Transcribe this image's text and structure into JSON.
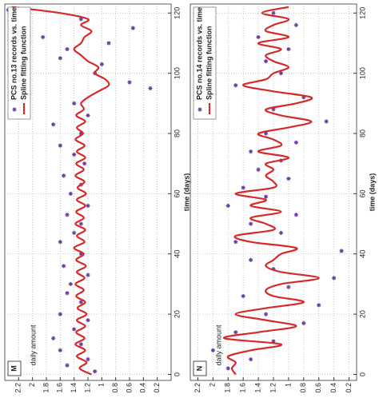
{
  "chart_data": [
    {
      "type": "line",
      "title": "M",
      "xlabel": "time (days)",
      "ylabel": "daily amount",
      "xlim": [
        -2,
        123
      ],
      "ylim": [
        0,
        2.4
      ],
      "xticks": [
        0,
        20,
        40,
        60,
        80,
        100,
        120
      ],
      "yticks": [
        0.2,
        0.4,
        0.6,
        0.8,
        1,
        1.2,
        1.4,
        1.6,
        1.8,
        2,
        2.2
      ],
      "grid": true,
      "legend": "upper right",
      "series": [
        {
          "name": "PCS no.13 records vs. time",
          "type": "scatter",
          "color": "#6a3fa0",
          "x": [
            1,
            3,
            5,
            8,
            10,
            12,
            15,
            18,
            20,
            24,
            27,
            30,
            33,
            36,
            40,
            44,
            47,
            50,
            53,
            56,
            60,
            63,
            66,
            70,
            73,
            76,
            80,
            83,
            86,
            90,
            95,
            97,
            100,
            103,
            105,
            108,
            110,
            112,
            115,
            118,
            121
          ],
          "values": [
            1.1,
            1.5,
            1.2,
            1.6,
            1.3,
            1.7,
            1.4,
            1.2,
            1.6,
            1.3,
            1.5,
            1.45,
            1.2,
            1.55,
            1.3,
            1.6,
            1.4,
            1.3,
            1.5,
            1.2,
            1.45,
            1.3,
            1.55,
            1.25,
            1.4,
            1.6,
            1.3,
            1.7,
            1.2,
            1.4,
            0.3,
            0.6,
            1.1,
            1.0,
            1.6,
            1.5,
            0.9,
            1.85,
            0.55,
            1.3,
            2.35
          ]
        },
        {
          "name": "Spline fitting function",
          "type": "line",
          "color": "#d42a2a",
          "x": [
            0,
            2,
            4,
            6,
            8,
            10,
            12,
            14,
            16,
            18,
            20,
            22,
            24,
            26,
            28,
            30,
            32,
            34,
            36,
            38,
            40,
            42,
            44,
            46,
            48,
            50,
            52,
            54,
            56,
            58,
            60,
            62,
            64,
            66,
            68,
            70,
            72,
            74,
            76,
            78,
            80,
            82,
            84,
            86,
            88,
            90,
            92,
            94,
            96,
            98,
            100,
            102,
            104,
            106,
            108,
            110,
            112,
            114,
            116,
            118,
            120,
            122
          ],
          "values": [
            1.15,
            1.32,
            1.22,
            1.36,
            1.24,
            1.38,
            1.25,
            1.37,
            1.24,
            1.36,
            1.22,
            1.35,
            1.24,
            1.37,
            1.26,
            1.38,
            1.25,
            1.36,
            1.23,
            1.37,
            1.26,
            1.4,
            1.25,
            1.36,
            1.24,
            1.38,
            1.26,
            1.37,
            1.24,
            1.36,
            1.23,
            1.35,
            1.25,
            1.38,
            1.26,
            1.37,
            1.24,
            1.36,
            1.25,
            1.38,
            1.27,
            1.36,
            1.24,
            1.37,
            1.26,
            1.3,
            1.2,
            1.05,
            0.9,
            0.95,
            1.1,
            1.05,
            1.2,
            1.3,
            1.4,
            1.3,
            1.25,
            1.15,
            1.3,
            1.2,
            1.6,
            2.3
          ]
        }
      ]
    },
    {
      "type": "line",
      "title": "N",
      "xlabel": "time (days)",
      "ylabel": "daily amount",
      "xlim": [
        -2,
        123
      ],
      "ylim": [
        0.1,
        2.3
      ],
      "xticks": [
        0,
        20,
        40,
        60,
        80,
        100,
        120
      ],
      "yticks": [
        0.2,
        0.4,
        0.6,
        0.8,
        1,
        1.2,
        1.4,
        1.6,
        1.8,
        2,
        2.2
      ],
      "grid": true,
      "legend": "upper right",
      "series": [
        {
          "name": "PCS no.14 records vs. time",
          "type": "scatter",
          "color": "#6a3fa0",
          "x": [
            2,
            5,
            8,
            11,
            14,
            17,
            20,
            23,
            26,
            29,
            32,
            35,
            38,
            41,
            44,
            47,
            50,
            53,
            56,
            59,
            62,
            65,
            68,
            71,
            74,
            77,
            80,
            84,
            88,
            92,
            96,
            100,
            104,
            108,
            112,
            116,
            120
          ],
          "values": [
            1.8,
            1.5,
            2.0,
            1.2,
            1.7,
            0.8,
            1.3,
            0.6,
            1.6,
            1.0,
            0.4,
            1.2,
            1.5,
            0.3,
            1.7,
            1.1,
            1.5,
            0.9,
            1.8,
            1.3,
            1.6,
            1.0,
            1.4,
            1.1,
            1.5,
            0.9,
            1.3,
            0.5,
            1.2,
            0.8,
            1.7,
            1.1,
            1.3,
            1.0,
            1.4,
            0.9,
            1.2
          ]
        },
        {
          "name": "Spline fitting function",
          "type": "line",
          "color": "#d42a2a",
          "x": [
            0,
            2,
            4,
            6,
            8,
            10,
            12,
            14,
            16,
            18,
            20,
            22,
            24,
            26,
            28,
            30,
            32,
            34,
            36,
            38,
            40,
            42,
            44,
            46,
            48,
            50,
            52,
            54,
            56,
            58,
            60,
            62,
            64,
            66,
            68,
            70,
            72,
            74,
            76,
            78,
            80,
            82,
            84,
            86,
            88,
            90,
            92,
            94,
            96,
            98,
            100,
            102,
            104,
            106,
            108,
            110,
            112,
            114,
            116,
            118,
            120,
            122
          ],
          "values": [
            1.7,
            1.75,
            1.7,
            1.8,
            1.5,
            1.1,
            1.85,
            1.4,
            0.9,
            1.3,
            1.7,
            1.3,
            0.8,
            1.2,
            1.3,
            1.1,
            0.6,
            1.1,
            1.3,
            1.2,
            1.1,
            0.9,
            1.5,
            1.7,
            1.2,
            1.3,
            1.5,
            1.1,
            1.5,
            1.3,
            1.7,
            1.2,
            1.2,
            1.3,
            1.2,
            1.3,
            1.0,
            1.4,
            1.1,
            1.2,
            1.4,
            1.0,
            0.7,
            1.1,
            1.3,
            0.9,
            0.7,
            1.2,
            1.6,
            1.3,
            1.2,
            1.0,
            1.2,
            1.3,
            1.1,
            1.4,
            1.0,
            1.3,
            1.2,
            1.0,
            1.35,
            1.0
          ]
        }
      ]
    }
  ]
}
